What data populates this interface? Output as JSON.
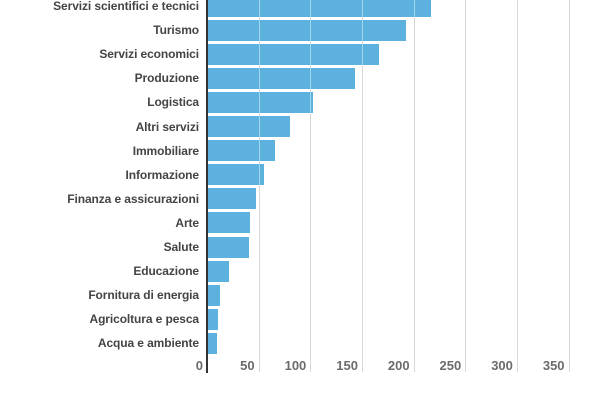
{
  "chart_data": {
    "type": "bar",
    "orientation": "horizontal",
    "categories": [
      "Servizi scientifici e tecnici",
      "Turismo",
      "Servizi economici",
      "Produzione",
      "Logistica",
      "Altri servizi",
      "Immobiliare",
      "Informazione",
      "Finanza e assicurazioni",
      "Arte",
      "Salute",
      "Educazione",
      "Fornitura di energia",
      "Agricoltura e pesca",
      "Acqua e ambiente"
    ],
    "values": [
      216,
      192,
      166,
      142,
      102,
      79,
      65,
      54,
      46,
      41,
      40,
      20,
      12,
      10,
      9
    ],
    "x_ticks": [
      0,
      50,
      100,
      150,
      200,
      250,
      300,
      350
    ],
    "xlim": [
      0,
      350
    ],
    "grid": true,
    "legend": "none",
    "colors": {
      "bar": "#5DB1DF",
      "axis_baseline": "#333333",
      "gridline": "#d8d8d8",
      "category_label": "#444444",
      "tick_label": "#6b6b6b",
      "background": "#ffffff"
    }
  }
}
